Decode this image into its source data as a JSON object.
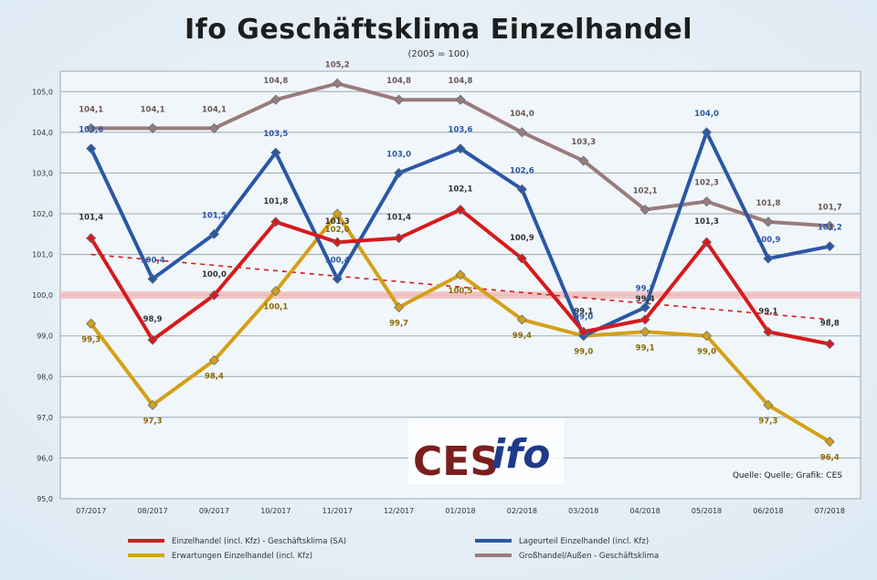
{
  "chart_data": {
    "type": "line",
    "title": "Ifo Geschäftsklima Einzelhandel",
    "subtitle": "(2005 = 100)",
    "ylim": [
      95,
      105.5
    ],
    "yticks": [
      "95,0",
      "96,0",
      "97,0",
      "98,0",
      "99,0",
      "100,0",
      "101,0",
      "102,0",
      "103,0",
      "104,0",
      "105,0"
    ],
    "ytick_values": [
      95,
      96,
      97,
      98,
      99,
      100,
      101,
      102,
      103,
      104,
      105
    ],
    "categories": [
      "07/2017",
      "08/2017",
      "09/2017",
      "10/2017",
      "11/2017",
      "12/2017",
      "01/2018",
      "02/2018",
      "03/2018",
      "04/2018",
      "05/2018",
      "06/2018",
      "07/2018"
    ],
    "grid": true,
    "legend_position": "bottom",
    "reference_line": 100,
    "series": [
      {
        "name": "Einzelhandel (incl. Kfz) - Geschäftsklima (SA)",
        "color": "#d7191c",
        "values": [
          101.4,
          98.9,
          100.0,
          101.8,
          101.3,
          101.4,
          102.1,
          100.9,
          99.1,
          99.4,
          101.3,
          99.1,
          98.8
        ],
        "labels": [
          "101,4",
          "98,9",
          "100,0",
          "101,8",
          "101,3",
          "101,4",
          "102,1",
          "100,9",
          "99,1",
          "99,4",
          "101,3",
          "99,1",
          "98,8"
        ]
      },
      {
        "name": "Lageurteil Einzelhandel (incl. Kfz)",
        "color": "#2a57a6",
        "values": [
          103.6,
          100.4,
          101.5,
          103.5,
          100.4,
          103.0,
          103.6,
          102.6,
          99.0,
          99.7,
          104.0,
          100.9,
          101.2
        ],
        "labels": [
          "103,6",
          "100,4",
          "101,5",
          "103,5",
          "100,4",
          "103,0",
          "103,6",
          "102,6",
          "99,0",
          "99,7",
          "104,0",
          "100,9",
          "101,2"
        ]
      },
      {
        "name": "Erwartungen Einzelhandel (incl. Kfz)",
        "color": "#d4a017",
        "values": [
          99.3,
          97.3,
          98.4,
          100.1,
          102.0,
          99.7,
          100.5,
          99.4,
          99.0,
          99.1,
          99.0,
          97.3,
          96.4
        ],
        "labels": [
          "99,3",
          "97,3",
          "98,4",
          "100,1",
          "102,0",
          "99,7",
          "100,5",
          "99,4",
          "99,0",
          "99,1",
          "99,0",
          "97,3",
          "96,4"
        ]
      },
      {
        "name": "Großhandel/Außen - Geschäftsklima",
        "color": "#9b7b7b",
        "values": [
          104.1,
          104.1,
          104.1,
          104.8,
          105.2,
          104.8,
          104.8,
          104.0,
          103.3,
          102.1,
          102.3,
          101.8,
          101.7
        ],
        "labels": [
          "104,1",
          "104,1",
          "104,1",
          "104,8",
          "105,2",
          "104,8",
          "104,8",
          "104,0",
          "103,3",
          "102,1",
          "102,3",
          "101,8",
          "101,7"
        ]
      }
    ],
    "trend": {
      "color": "#d7191c",
      "from": 101.0,
      "to": 99.4
    },
    "source_text": "Quelle: Quelle; Grafik: CES",
    "logo": {
      "left": "CES",
      "right": "ifo"
    }
  }
}
